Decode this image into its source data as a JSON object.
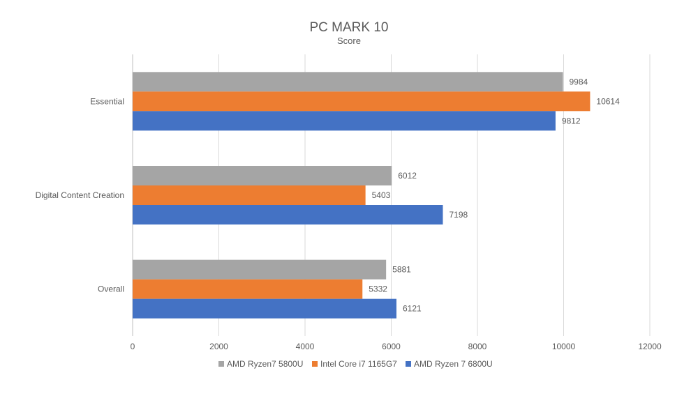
{
  "chart_data": {
    "type": "bar",
    "orientation": "horizontal",
    "title": "PC MARK 10",
    "subtitle": "Score",
    "xlabel": "",
    "ylabel": "",
    "categories": [
      "Essential",
      "Digital Content Creation",
      "Overall"
    ],
    "series": [
      {
        "name": "AMD Ryzen7 5800U",
        "color": "#a5a5a5",
        "values": [
          9984,
          6012,
          5881
        ]
      },
      {
        "name": "Intel Core i7 1165G7",
        "color": "#ed7d31",
        "values": [
          10614,
          5403,
          5332
        ]
      },
      {
        "name": "AMD Ryzen 7 6800U",
        "color": "#4472c4",
        "values": [
          9812,
          7198,
          6121
        ]
      }
    ],
    "xlim": [
      0,
      12000
    ],
    "xticks": [
      "0",
      "2000",
      "4000",
      "6000",
      "8000",
      "10000",
      "12000"
    ],
    "grid": true,
    "legend": "bottom"
  }
}
